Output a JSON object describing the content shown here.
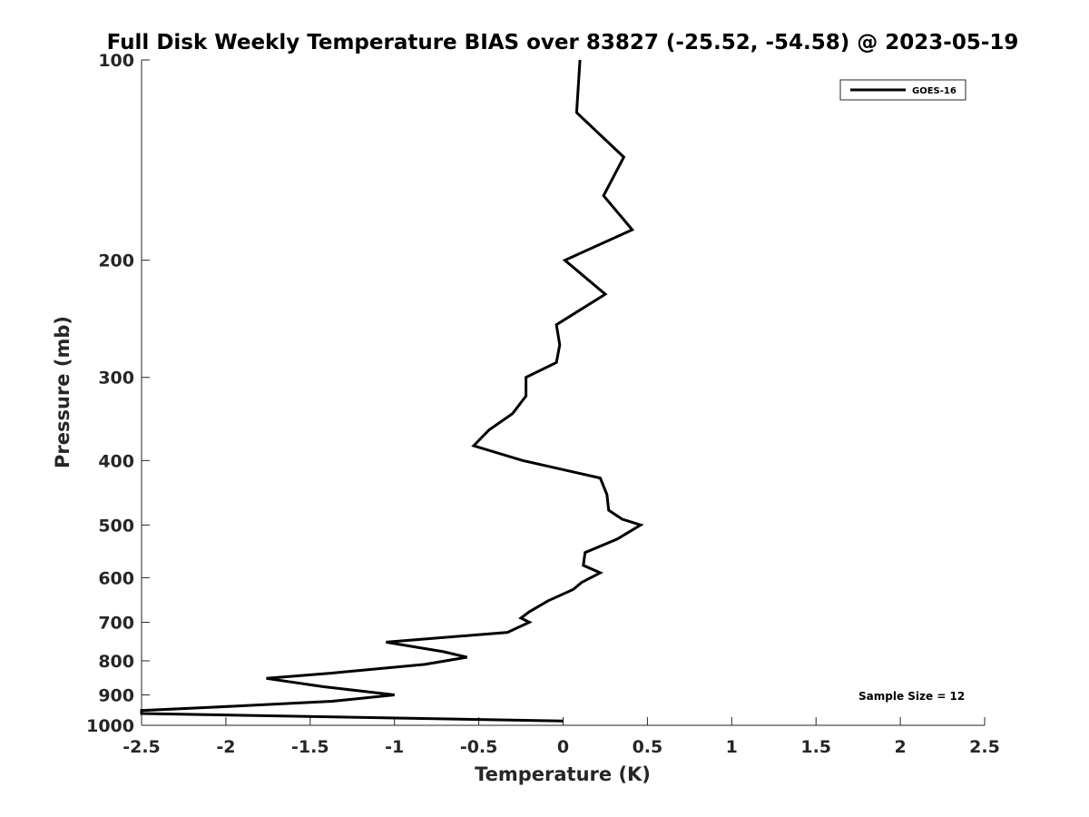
{
  "chart_data": {
    "type": "line",
    "title": "Full Disk Weekly Temperature BIAS over 83827 (-25.52, -54.58) @ 2023-05-19",
    "xlabel": "Temperature (K)",
    "ylabel": "Pressure (mb)",
    "xlim": [
      -2.5,
      2.5
    ],
    "ylim": [
      100,
      1000
    ],
    "y_scale": "log",
    "y_reversed": true,
    "x_ticks": [
      "-2.5",
      "-2",
      "-1.5",
      "-1",
      "-0.5",
      "0",
      "0.5",
      "1",
      "1.5",
      "2",
      "2.5"
    ],
    "x_tick_values": [
      -2.5,
      -2,
      -1.5,
      -1,
      -0.5,
      0,
      0.5,
      1,
      1.5,
      2,
      2.5
    ],
    "y_ticks": [
      "100",
      "200",
      "300",
      "400",
      "500",
      "600",
      "700",
      "800",
      "900",
      "1000"
    ],
    "y_tick_values": [
      100,
      200,
      300,
      400,
      500,
      600,
      700,
      800,
      900,
      1000
    ],
    "grid": false,
    "legend_position": "top-right",
    "series": [
      {
        "name": "GOES-16",
        "color": "#000000",
        "points": [
          [
            0.1,
            100
          ],
          [
            0.08,
            120
          ],
          [
            0.36,
            140
          ],
          [
            0.24,
            160
          ],
          [
            0.41,
            180
          ],
          [
            0.01,
            200
          ],
          [
            0.25,
            225
          ],
          [
            -0.04,
            250
          ],
          [
            -0.02,
            268
          ],
          [
            -0.04,
            285
          ],
          [
            -0.22,
            300
          ],
          [
            -0.22,
            320
          ],
          [
            -0.3,
            340
          ],
          [
            -0.44,
            360
          ],
          [
            -0.53,
            380
          ],
          [
            -0.24,
            400
          ],
          [
            0.22,
            425
          ],
          [
            0.26,
            450
          ],
          [
            0.27,
            475
          ],
          [
            0.35,
            490
          ],
          [
            0.46,
            500
          ],
          [
            0.32,
            525
          ],
          [
            0.13,
            550
          ],
          [
            0.12,
            575
          ],
          [
            0.22,
            590
          ],
          [
            0.11,
            610
          ],
          [
            0.06,
            625
          ],
          [
            -0.09,
            650
          ],
          [
            -0.2,
            675
          ],
          [
            -0.25,
            690
          ],
          [
            -0.2,
            700
          ],
          [
            -0.33,
            725
          ],
          [
            -1.05,
            750
          ],
          [
            -0.71,
            775
          ],
          [
            -0.57,
            790
          ],
          [
            -0.82,
            810
          ],
          [
            -1.38,
            835
          ],
          [
            -1.76,
            850
          ],
          [
            -1.42,
            875
          ],
          [
            -1.0,
            900
          ],
          [
            -1.37,
            920
          ],
          [
            -2.1,
            940
          ],
          [
            -2.5,
            950
          ],
          [
            -2.5,
            960
          ],
          [
            0.0,
            985
          ]
        ]
      }
    ],
    "annotations": [
      "Sample Size = 12"
    ]
  }
}
